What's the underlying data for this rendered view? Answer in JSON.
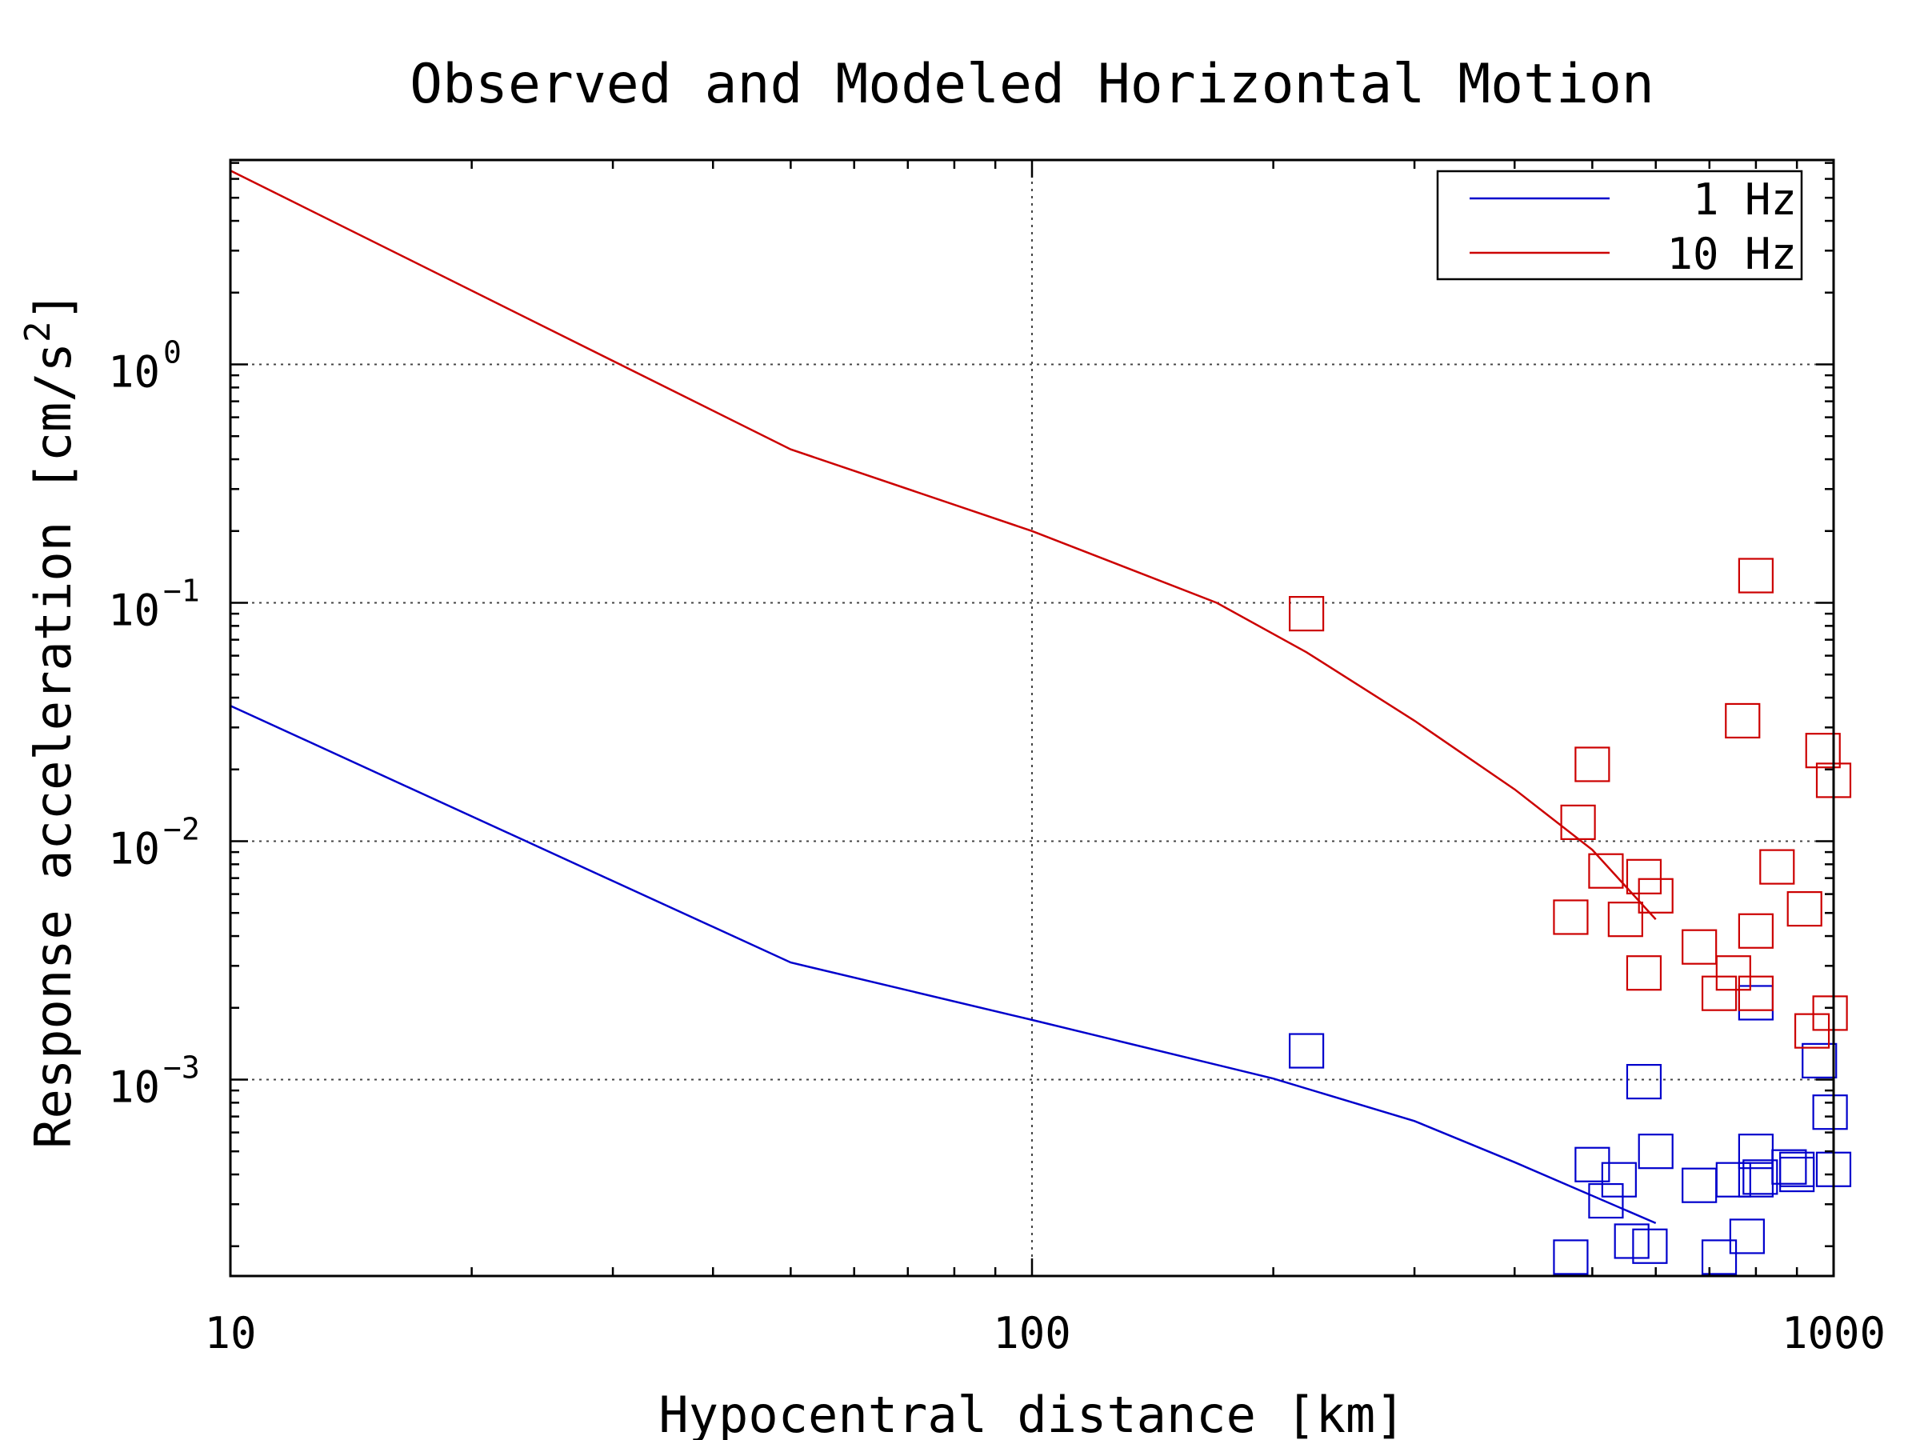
{
  "chart_data": {
    "type": "scatter",
    "title": "Observed and Modeled Horizontal Motion",
    "xlabel": "Hypocentral distance [km]",
    "ylabel": "Response acceleration [cm/s2]",
    "xscale": "log",
    "yscale": "log",
    "xlim": [
      10,
      1000
    ],
    "ylim": [
      0.00015,
      7.2
    ],
    "grid": true,
    "legend_position": "top-right",
    "x_ticks": [
      {
        "value": 10,
        "label": "10"
      },
      {
        "value": 100,
        "label": "100"
      },
      {
        "value": 1000,
        "label": "1000"
      }
    ],
    "y_ticks": [
      {
        "value": 1,
        "base": "10",
        "exp": "0"
      },
      {
        "value": 0.1,
        "base": "10",
        "exp": "−1"
      },
      {
        "value": 0.01,
        "base": "10",
        "exp": "−2"
      },
      {
        "value": 0.001,
        "base": "10",
        "exp": "−3"
      }
    ],
    "series": [
      {
        "name": "1 Hz",
        "color": "#0000cc",
        "model_line": [
          [
            10,
            0.037
          ],
          [
            50,
            0.0031
          ],
          [
            100,
            0.00178
          ],
          [
            200,
            0.00101
          ],
          [
            300,
            0.00067
          ],
          [
            400,
            0.00045
          ],
          [
            600,
            0.00025
          ]
        ],
        "observed": [
          [
            220,
            0.00132
          ],
          [
            500,
            0.00044
          ],
          [
            520,
            0.00031
          ],
          [
            540,
            0.00038
          ],
          [
            560,
            0.00021
          ],
          [
            580,
            0.00098
          ],
          [
            590,
            0.0002
          ],
          [
            600,
            0.0005
          ],
          [
            470,
            0.00018
          ],
          [
            680,
            0.00036
          ],
          [
            720,
            0.00018
          ],
          [
            750,
            0.00038
          ],
          [
            780,
            0.00022
          ],
          [
            800,
            0.0005
          ],
          [
            800,
            0.00038
          ],
          [
            810,
            0.00039
          ],
          [
            800,
            0.0021
          ],
          [
            880,
            0.00043
          ],
          [
            900,
            0.00042
          ],
          [
            900,
            0.0004
          ],
          [
            960,
            0.0012
          ],
          [
            990,
            0.00073
          ],
          [
            1000,
            0.00042
          ]
        ]
      },
      {
        "name": "10 Hz",
        "color": "#cc0000",
        "model_line": [
          [
            10,
            6.5
          ],
          [
            50,
            0.44
          ],
          [
            100,
            0.2
          ],
          [
            170,
            0.1
          ],
          [
            220,
            0.062
          ],
          [
            300,
            0.032
          ],
          [
            400,
            0.0165
          ],
          [
            500,
            0.0092
          ],
          [
            600,
            0.0047
          ]
        ],
        "observed": [
          [
            220,
            0.09
          ],
          [
            470,
            0.0048
          ],
          [
            480,
            0.012
          ],
          [
            500,
            0.021
          ],
          [
            520,
            0.0075
          ],
          [
            550,
            0.0047
          ],
          [
            580,
            0.0071
          ],
          [
            600,
            0.0059
          ],
          [
            580,
            0.0028
          ],
          [
            680,
            0.0036
          ],
          [
            720,
            0.0023
          ],
          [
            750,
            0.0028
          ],
          [
            770,
            0.032
          ],
          [
            800,
            0.13
          ],
          [
            800,
            0.0042
          ],
          [
            800,
            0.0023
          ],
          [
            850,
            0.0078
          ],
          [
            920,
            0.0052
          ],
          [
            940,
            0.0016
          ],
          [
            970,
            0.024
          ],
          [
            990,
            0.0019
          ],
          [
            1000,
            0.018
          ]
        ]
      }
    ]
  }
}
